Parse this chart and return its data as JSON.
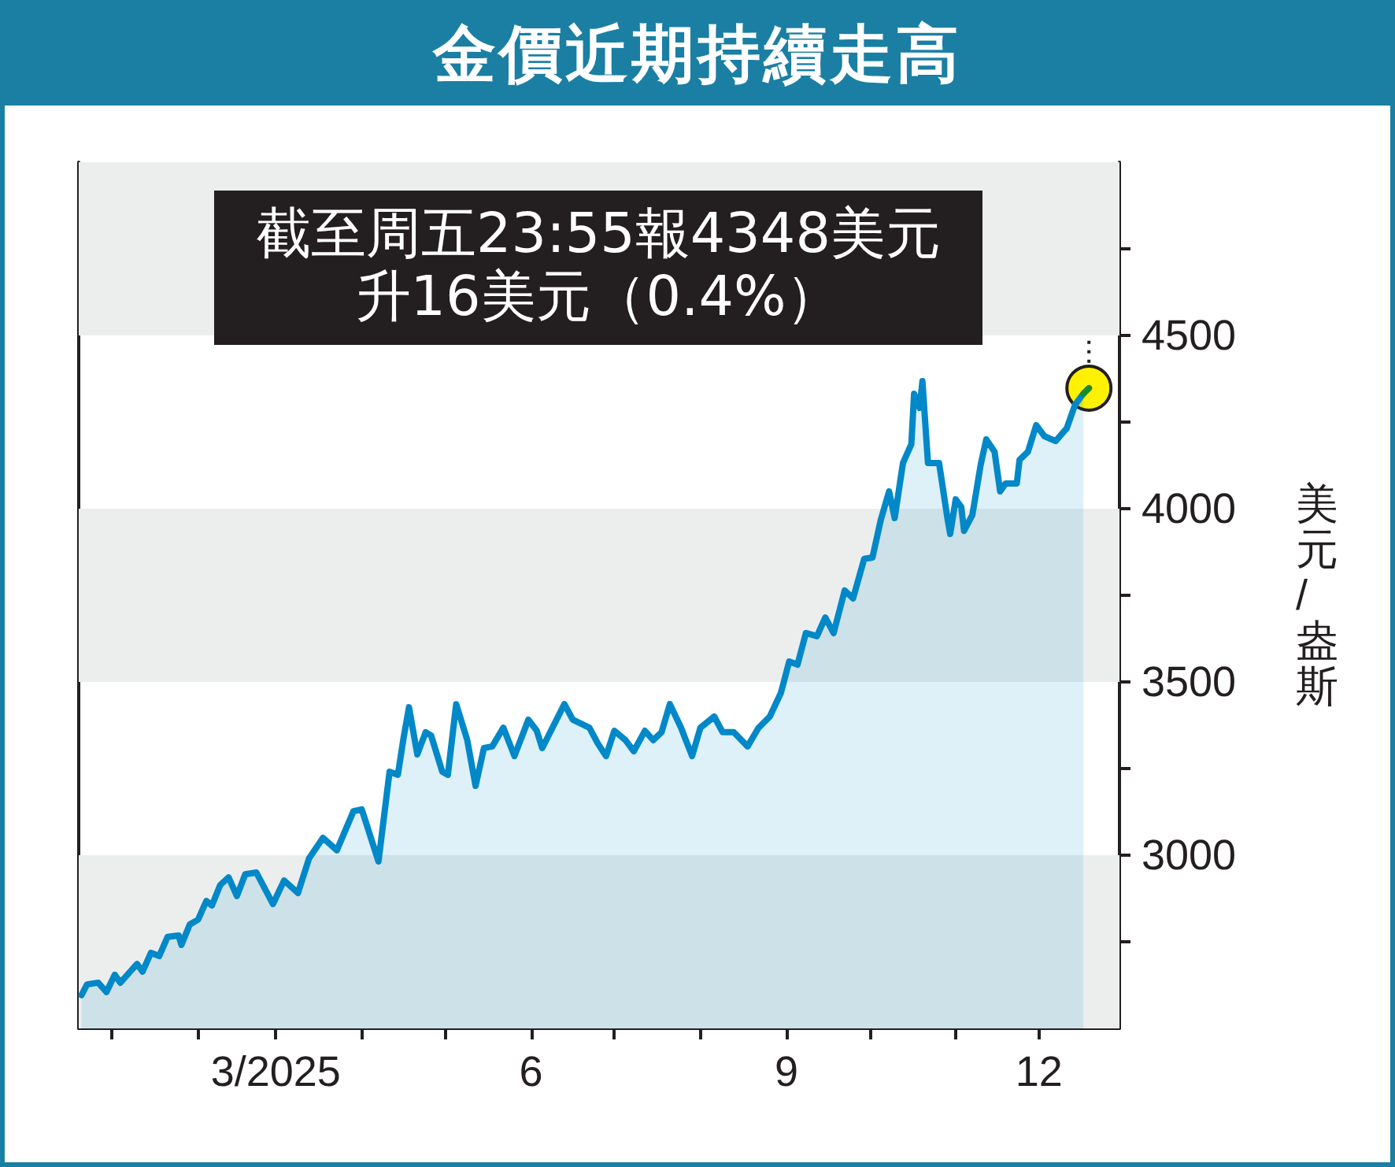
{
  "chart_data": {
    "type": "area",
    "title": "金價近期持續走高",
    "ylabel": "美元/盎斯",
    "x": [
      "2024-12-21",
      "2024-12-23",
      "2024-12-27",
      "2024-12-30",
      "2025-01-02",
      "2025-01-04",
      "2025-01-10",
      "2025-01-12",
      "2025-01-15",
      "2025-01-18",
      "2025-01-21",
      "2025-01-25",
      "2025-01-26",
      "2025-01-29",
      "2025-02-01",
      "2025-02-04",
      "2025-02-06",
      "2025-02-09",
      "2025-02-12",
      "2025-02-15",
      "2025-02-18",
      "2025-02-22",
      "2025-02-28",
      "2025-03-04",
      "2025-03-09",
      "2025-03-13",
      "2025-03-18",
      "2025-03-23",
      "2025-03-29",
      "2025-04-01",
      "2025-04-07",
      "2025-04-11",
      "2025-04-14",
      "2025-04-16",
      "2025-04-18",
      "2025-04-21",
      "2025-04-24",
      "2025-04-26",
      "2025-04-30",
      "2025-05-02",
      "2025-05-05",
      "2025-05-09",
      "2025-05-12",
      "2025-05-15",
      "2025-05-18",
      "2025-05-22",
      "2025-05-26",
      "2025-05-31",
      "2025-06-03",
      "2025-06-05",
      "2025-06-13",
      "2025-06-16",
      "2025-06-22",
      "2025-06-25",
      "2025-06-28",
      "2025-07-01",
      "2025-07-05",
      "2025-07-08",
      "2025-07-12",
      "2025-07-15",
      "2025-07-18",
      "2025-07-21",
      "2025-07-25",
      "2025-07-29",
      "2025-08-01",
      "2025-08-06",
      "2025-08-09",
      "2025-08-13",
      "2025-08-18",
      "2025-08-22",
      "2025-08-26",
      "2025-08-30",
      "2025-09-02",
      "2025-09-05",
      "2025-09-08",
      "2025-09-12",
      "2025-09-15",
      "2025-09-18",
      "2025-09-22",
      "2025-09-25",
      "2025-09-29",
      "2025-10-02",
      "2025-10-05",
      "2025-10-08",
      "2025-10-10",
      "2025-10-13",
      "2025-10-16",
      "2025-10-17",
      "2025-10-19",
      "2025-10-20",
      "2025-10-22",
      "2025-10-26",
      "2025-10-29",
      "2025-10-30",
      "2025-11-01",
      "2025-11-03",
      "2025-11-04",
      "2025-11-07",
      "2025-11-10",
      "2025-11-12",
      "2025-11-15",
      "2025-11-17",
      "2025-11-19",
      "2025-11-23",
      "2025-11-24",
      "2025-11-27",
      "2025-11-30",
      "2025-12-03",
      "2025-12-07",
      "2025-12-11",
      "2025-12-14",
      "2025-12-17"
    ],
    "series": [
      {
        "color": "#0088c8",
        "values": [
          2596,
          2627,
          2632,
          2605,
          2655,
          2632,
          2686,
          2664,
          2718,
          2709,
          2764,
          2768,
          2741,
          2800,
          2814,
          2868,
          2855,
          2914,
          2936,
          2882,
          2945,
          2950,
          2859,
          2927,
          2891,
          2991,
          3050,
          3014,
          3127,
          3132,
          2982,
          3241,
          3232,
          3336,
          3427,
          3291,
          3355,
          3345,
          3241,
          3232,
          3436,
          3332,
          3200,
          3309,
          3314,
          3368,
          3286,
          3391,
          3360,
          3309,
          3436,
          3391,
          3368,
          3323,
          3286,
          3359,
          3332,
          3300,
          3359,
          3332,
          3355,
          3436,
          3368,
          3286,
          3368,
          3400,
          3355,
          3355,
          3314,
          3368,
          3400,
          3468,
          3559,
          3550,
          3641,
          3632,
          3686,
          3641,
          3764,
          3741,
          3855,
          3859,
          3968,
          4050,
          3973,
          4132,
          4186,
          4332,
          4291,
          4368,
          4132,
          4132,
          3973,
          3927,
          4027,
          4005,
          3936,
          3982,
          4127,
          4200,
          4164,
          4050,
          4073,
          4073,
          4141,
          4164,
          4241,
          4209,
          4195,
          4232,
          4300,
          4332
        ]
      },
      {
        "type": "line",
        "color": "#1a8a2a",
        "x": [
          "2025-12-17",
          "2025-12-19"
        ],
        "values": [
          4332,
          4348
        ]
      }
    ],
    "xlim": [
      "2024-12-20",
      "2025-12-30"
    ],
    "xticks": [
      {
        "value": "2025-01-01",
        "label": null
      },
      {
        "value": "2025-02-01",
        "label": null
      },
      {
        "value": "2025-03-01",
        "label": "3/2025"
      },
      {
        "value": "2025-04-01",
        "label": null
      },
      {
        "value": "2025-05-01",
        "label": null
      },
      {
        "value": "2025-06-01",
        "label": "6"
      },
      {
        "value": "2025-07-01",
        "label": null
      },
      {
        "value": "2025-08-01",
        "label": null
      },
      {
        "value": "2025-09-01",
        "label": "9"
      },
      {
        "value": "2025-10-01",
        "label": null
      },
      {
        "value": "2025-11-01",
        "label": null
      },
      {
        "value": "2025-12-01",
        "label": "12"
      }
    ],
    "ylim": [
      2500,
      5000
    ],
    "yticks": [
      {
        "value": 2750,
        "label": null
      },
      3000,
      {
        "value": 3250,
        "label": null
      },
      3500,
      {
        "value": 3750,
        "label": null
      },
      4000,
      {
        "value": 4250,
        "label": null
      },
      4500,
      {
        "value": 4750,
        "label": null
      }
    ],
    "bands": [
      {
        "axis": "y",
        "from": 2500,
        "to": 3000,
        "color": "#eceeee"
      },
      {
        "axis": "y",
        "from": 3500,
        "to": 4000,
        "color": "#eceeee"
      },
      {
        "axis": "y",
        "from": 4500,
        "to": 5000,
        "color": "#eceeee"
      }
    ],
    "annotations": [
      {
        "text": "截至周五23:55報4348美元升16美元（0.4%）",
        "x": "2025-12-19",
        "y": 4348
      }
    ],
    "grid": false,
    "line_style": "solid"
  }
}
